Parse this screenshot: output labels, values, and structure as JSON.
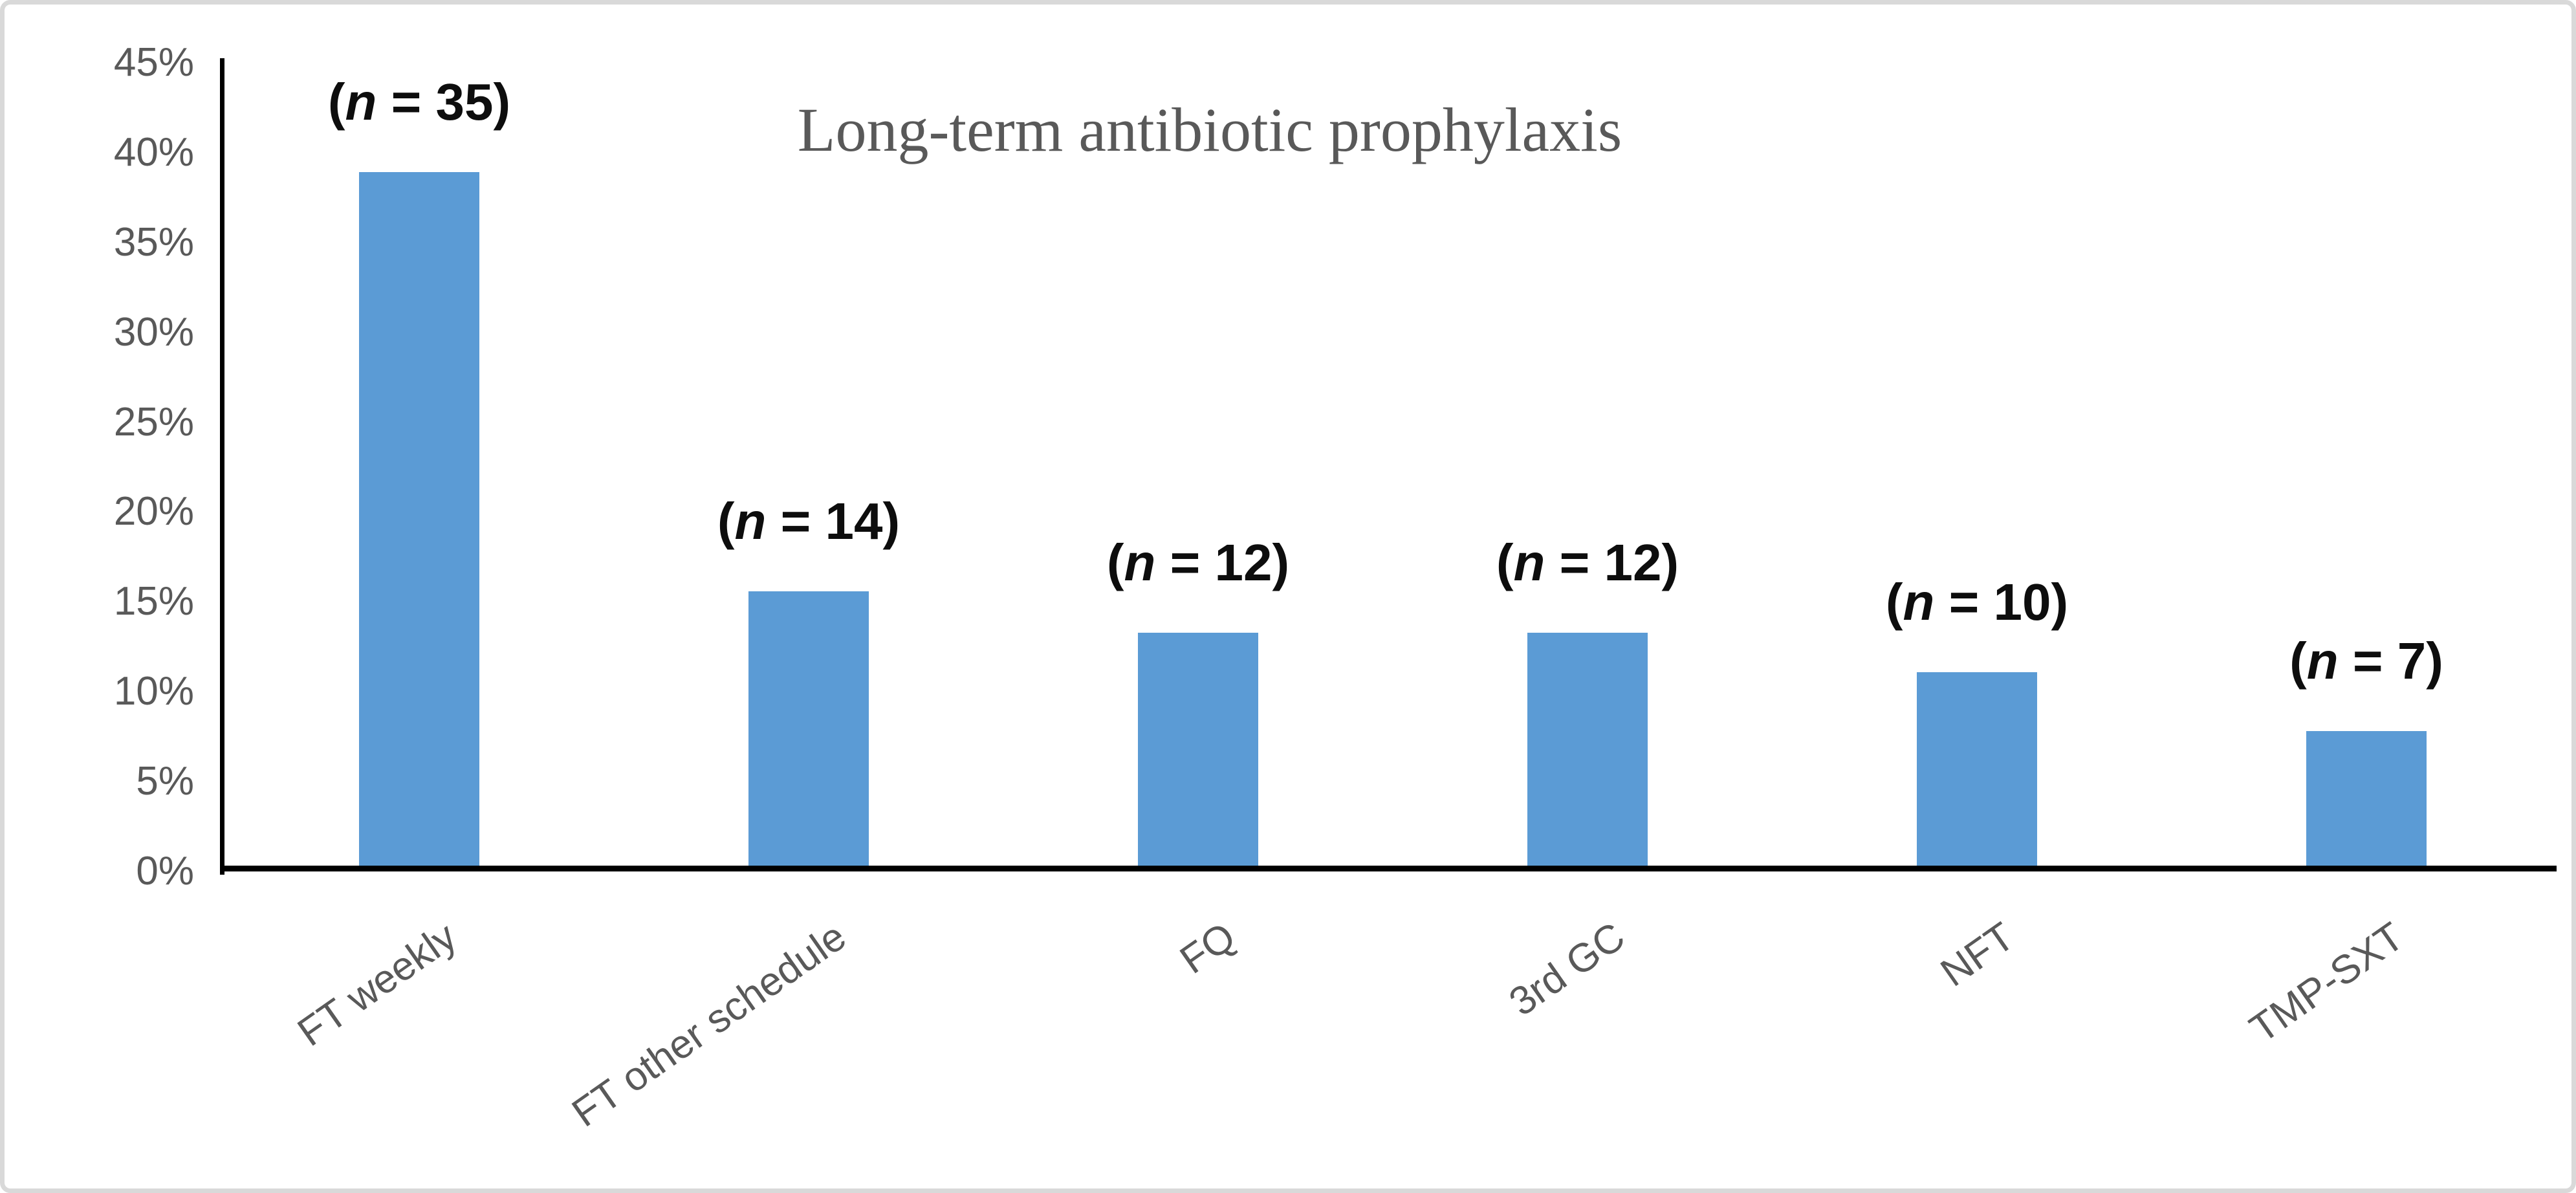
{
  "chart_data": {
    "type": "bar",
    "title": "Long-term antibiotic prophylaxis",
    "categories": [
      "FT weekly",
      "FT other schedule",
      "FQ",
      "3rd GC",
      "NFT",
      "TMP-SXT"
    ],
    "counts": [
      35,
      14,
      12,
      12,
      10,
      7
    ],
    "values": [
      38.9,
      15.6,
      13.3,
      13.3,
      11.1,
      7.8
    ],
    "annotations": [
      {
        "pre": "(",
        "var": "n",
        "post": " = 35)"
      },
      {
        "pre": "(",
        "var": "n",
        "post": " = 14)"
      },
      {
        "pre": "(",
        "var": "n",
        "post": " = 12)"
      },
      {
        "pre": "(",
        "var": "n",
        "post": " = 12)"
      },
      {
        "pre": "(",
        "var": "n",
        "post": " = 10)"
      },
      {
        "pre": "(",
        "var": "n",
        "post": " = 7)"
      }
    ],
    "yticks": [
      "45%",
      "40%",
      "35%",
      "30%",
      "25%",
      "20%",
      "15%",
      "10%",
      "5%",
      "0%"
    ],
    "ylim": [
      0,
      45
    ],
    "xlabel": "",
    "ylabel": "",
    "grid": false,
    "legend_position": "none",
    "bar_color": "#5B9BD5",
    "title_color": "#595959",
    "tick_label_color": "#595959",
    "annotation_color": "#0d0d0d",
    "axis_color": "#000000",
    "border_color": "#D9D9D9"
  }
}
